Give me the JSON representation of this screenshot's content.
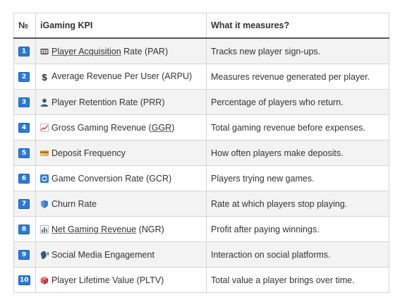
{
  "table": {
    "headers": {
      "number": "№",
      "kpi": "iGaming KPI",
      "measures": "What it measures?"
    },
    "rows": [
      {
        "num": "1",
        "icon": "slot-machine-icon",
        "link": "Player Acquisition",
        "rest": " Rate (PAR)",
        "measures": "Tracks new player sign-ups."
      },
      {
        "num": "2",
        "icon": "dollar-icon",
        "link": "",
        "rest": "Average Revenue Per User (ARPU)",
        "measures": "Measures revenue generated per player."
      },
      {
        "num": "3",
        "icon": "user-icon",
        "link": "",
        "rest": "Player Retention Rate (PRR)",
        "measures": "Percentage of players who return."
      },
      {
        "num": "4",
        "icon": "trend-chart-icon",
        "pre": "Gross Gaming Revenue (",
        "link": "GGR",
        "post": ")",
        "measures": "Total gaming revenue before expenses."
      },
      {
        "num": "5",
        "icon": "credit-card-icon",
        "link": "",
        "rest": "Deposit Frequency",
        "measures": "How often players make deposits."
      },
      {
        "num": "6",
        "icon": "cycle-arrows-icon",
        "link": "",
        "rest": "Game Conversion Rate (GCR)",
        "measures": "Players trying new games."
      },
      {
        "num": "7",
        "icon": "shield-icon",
        "link": "",
        "rest": "Churn Rate",
        "measures": "Rate at which players stop playing."
      },
      {
        "num": "8",
        "icon": "bar-chart-icon",
        "link": "Net Gaming Revenue",
        "rest": " (NGR)",
        "measures": "Profit after paying winnings."
      },
      {
        "num": "9",
        "icon": "speaking-head-icon",
        "link": "",
        "rest": "Social Media Engagement",
        "measures": "Interaction on social platforms."
      },
      {
        "num": "10",
        "icon": "die-icon",
        "link": "",
        "rest": "Player Lifetime Value (PLTV)",
        "measures": "Total value a player brings over time."
      }
    ]
  },
  "colors": {
    "badge": "#2b7bd8",
    "row_alt": "#f3f3f3",
    "header_rule": "#555555"
  }
}
